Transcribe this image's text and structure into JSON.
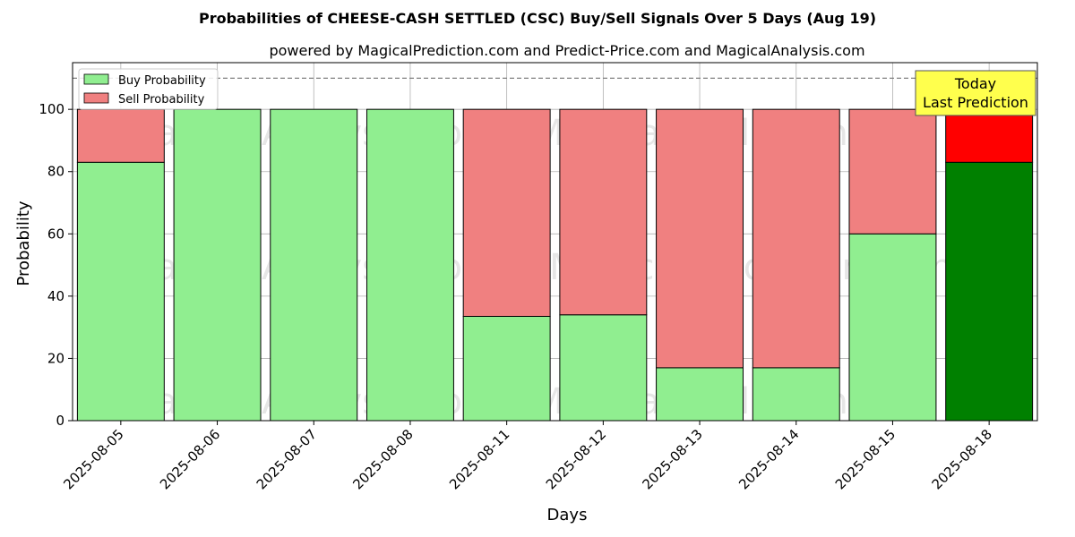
{
  "chart_data": {
    "type": "bar",
    "stacked": true,
    "title": "Probabilities of CHEESE-CASH SETTLED (CSC) Buy/Sell Signals Over 5 Days (Aug 19)",
    "subtitle": "powered by MagicalPrediction.com and Predict-Price.com and MagicalAnalysis.com",
    "xlabel": "Days",
    "ylabel": "Probability",
    "ylim": [
      0,
      115
    ],
    "yticks": [
      0,
      20,
      40,
      60,
      80,
      100
    ],
    "grid": true,
    "reference_line": 110,
    "categories": [
      "2025-08-05",
      "2025-08-06",
      "2025-08-07",
      "2025-08-08",
      "2025-08-11",
      "2025-08-12",
      "2025-08-13",
      "2025-08-14",
      "2025-08-15",
      "2025-08-18"
    ],
    "series": [
      {
        "name": "Buy Probability",
        "values": [
          83,
          100,
          100,
          100,
          33.5,
          34,
          17,
          17,
          60,
          83
        ]
      },
      {
        "name": "Sell Probability",
        "values": [
          17,
          0,
          0,
          0,
          66.5,
          66,
          83,
          83,
          40,
          17
        ]
      }
    ],
    "legend": {
      "position": "top-left",
      "entries": [
        "Buy Probability",
        "Sell Probability"
      ]
    },
    "annotation": {
      "line1": "Today",
      "line2": "Last Prediction",
      "target": "2025-08-18"
    },
    "watermarks": [
      "MagicalAnalysis.com",
      "MagicalPrediction.com",
      "MagicalAnalysis.com",
      "MagicalPrediction.com",
      "MagicalAnalysis.com",
      "MagicalPrediction.com"
    ]
  },
  "colors": {
    "buy": "#90ee90",
    "sell": "#f08080",
    "buy_highlight": "#008000",
    "sell_highlight": "#ff0000",
    "annotation_bg": "#ffff4d",
    "grid": "#b0b0b0",
    "reference_line": "#808080"
  }
}
